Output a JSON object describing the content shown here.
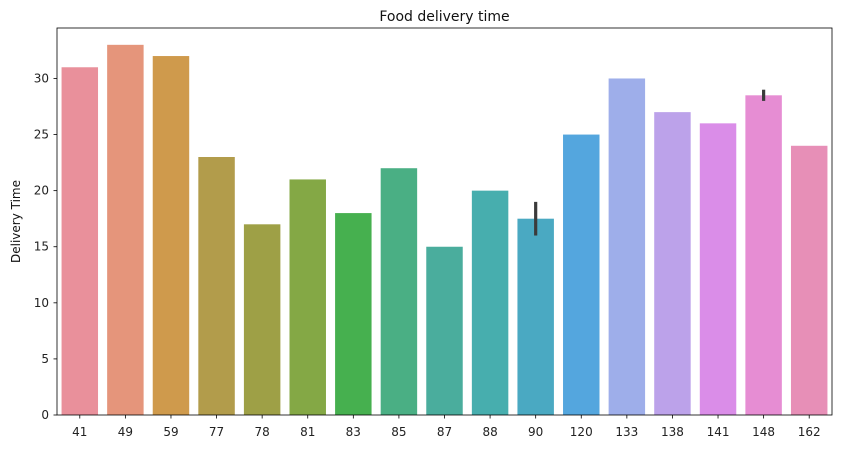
{
  "chart_data": {
    "type": "bar",
    "title": "Food delivery time",
    "xlabel": "",
    "ylabel": "Delivery Time",
    "ylim": [
      0,
      34.5
    ],
    "yticks": [
      0,
      5,
      10,
      15,
      20,
      25,
      30
    ],
    "grid": false,
    "categories": [
      "41",
      "49",
      "59",
      "77",
      "78",
      "81",
      "83",
      "85",
      "87",
      "88",
      "90",
      "120",
      "133",
      "138",
      "141",
      "148",
      "162"
    ],
    "values": [
      31,
      33,
      32,
      23,
      17,
      21,
      18,
      22,
      15,
      20,
      17.5,
      25,
      30,
      27,
      26,
      28.5,
      24
    ],
    "error_bars": {
      "90": [
        16,
        19
      ],
      "148": [
        28,
        29
      ]
    },
    "colors": [
      "#e9909b",
      "#e5957b",
      "#cf9a4c",
      "#b29c4b",
      "#9ea046",
      "#84a845",
      "#46b04f",
      "#4aaf84",
      "#4aad9d",
      "#47aeae",
      "#4aa9c2",
      "#54a6de",
      "#9eaeea",
      "#bca2ea",
      "#da8de8",
      "#e68dd3",
      "#e78fb7"
    ],
    "error_color": "#3b3b3b"
  }
}
